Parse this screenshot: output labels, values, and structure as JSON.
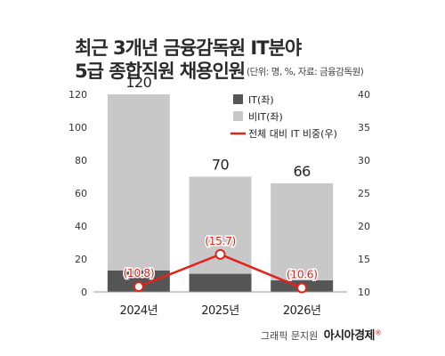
{
  "chart_data": {
    "type": "bar",
    "title_lines": [
      "최근 3개년 금융감독원 IT분야",
      "5급 종합직원 채용인원"
    ],
    "subtitle": "(단위: 명, %, 자료: 금융감독원)",
    "categories": [
      "2024년",
      "2025년",
      "2026년"
    ],
    "totals": [
      120,
      70,
      66
    ],
    "series": [
      {
        "name": "IT(좌)",
        "type": "bar",
        "axis": "left",
        "values": [
          13,
          11,
          7
        ],
        "color": "#555555"
      },
      {
        "name": "비IT(좌)",
        "type": "bar",
        "axis": "left",
        "values": [
          107,
          59,
          59
        ],
        "color": "#c8c8c8"
      },
      {
        "name": "전체 대비 IT 비중(우)",
        "type": "line",
        "axis": "right",
        "values": [
          10.8,
          15.7,
          10.6
        ],
        "labels": [
          "(10.8)",
          "(15.7)",
          "(10.6)"
        ],
        "color": "#e2231a"
      }
    ],
    "y_left": {
      "ticks": [
        "0",
        "20",
        "40",
        "60",
        "80",
        "100",
        "120"
      ],
      "ylim": [
        0,
        120
      ]
    },
    "y_right": {
      "ticks": [
        "10",
        "15",
        "20",
        "25",
        "30",
        "35",
        "40"
      ],
      "ylim": [
        10,
        40
      ]
    },
    "legend_position": "top-right",
    "grid": false
  },
  "credit": {
    "text": "그래픽 문지원",
    "brand": "아시아경제",
    "brand_mark": "®"
  }
}
